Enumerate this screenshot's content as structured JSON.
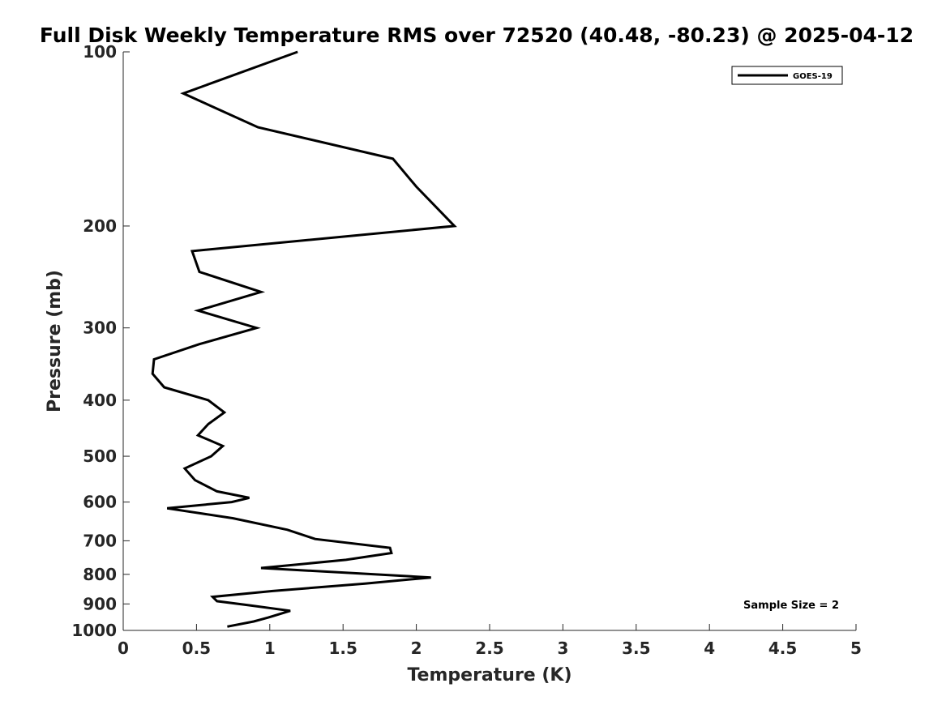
{
  "chart_data": {
    "type": "line",
    "title": "Full Disk Weekly Temperature RMS over 72520 (40.48, -80.23) @ 2025-04-12",
    "xlabel": "Temperature (K)",
    "ylabel": "Pressure (mb)",
    "xlim": [
      0,
      5
    ],
    "ylim": [
      100,
      1000
    ],
    "yscale": "log",
    "y_reversed": true,
    "xticks": [
      0,
      0.5,
      1,
      1.5,
      2,
      2.5,
      3,
      3.5,
      4,
      4.5,
      5
    ],
    "xtick_labels": [
      "0",
      "0.5",
      "1",
      "1.5",
      "2",
      "2.5",
      "3",
      "3.5",
      "4",
      "4.5",
      "5"
    ],
    "yticks": [
      100,
      200,
      300,
      400,
      500,
      600,
      700,
      800,
      900,
      1000
    ],
    "ytick_labels": [
      "100",
      "200",
      "300",
      "400",
      "500",
      "600",
      "700",
      "800",
      "900",
      "1000"
    ],
    "grid": false,
    "legend_position": "top-right",
    "series": [
      {
        "name": "GOES-19",
        "color": "#000000",
        "points": [
          [
            1.19,
            100
          ],
          [
            0.41,
            118
          ],
          [
            0.92,
            135
          ],
          [
            1.84,
            153
          ],
          [
            2.0,
            171
          ],
          [
            2.26,
            200
          ],
          [
            0.47,
            221
          ],
          [
            0.52,
            240
          ],
          [
            0.94,
            260
          ],
          [
            0.51,
            280
          ],
          [
            0.91,
            300
          ],
          [
            0.52,
            320
          ],
          [
            0.21,
            340
          ],
          [
            0.2,
            360
          ],
          [
            0.28,
            380
          ],
          [
            0.58,
            400
          ],
          [
            0.69,
            420
          ],
          [
            0.58,
            440
          ],
          [
            0.51,
            460
          ],
          [
            0.68,
            480
          ],
          [
            0.6,
            500
          ],
          [
            0.42,
            525
          ],
          [
            0.49,
            550
          ],
          [
            0.64,
            575
          ],
          [
            0.86,
            590
          ],
          [
            0.74,
            600
          ],
          [
            0.3,
            615
          ],
          [
            0.75,
            640
          ],
          [
            1.12,
            670
          ],
          [
            1.31,
            695
          ],
          [
            1.82,
            720
          ],
          [
            1.83,
            735
          ],
          [
            1.52,
            755
          ],
          [
            0.94,
            780
          ],
          [
            2.1,
            810
          ],
          [
            1.65,
            830
          ],
          [
            1.02,
            855
          ],
          [
            0.61,
            875
          ],
          [
            0.64,
            890
          ],
          [
            0.86,
            905
          ],
          [
            1.14,
            925
          ],
          [
            0.99,
            950
          ],
          [
            0.89,
            965
          ],
          [
            0.71,
            985
          ]
        ]
      }
    ],
    "annotation": "Sample Size = 2"
  }
}
